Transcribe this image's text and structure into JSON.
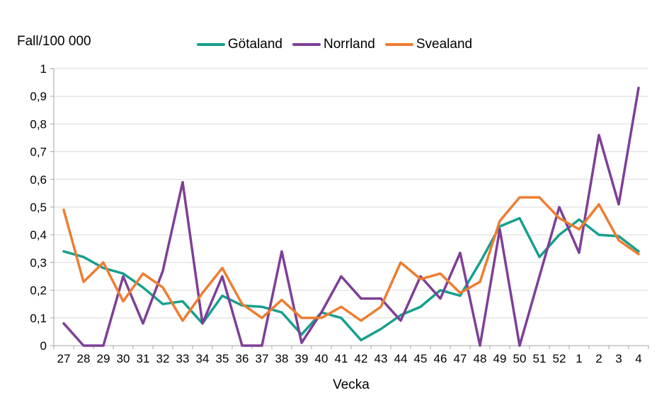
{
  "title": "Fall/100 000",
  "xaxis_title": "Vecka",
  "colors": {
    "gotaland": "#169F8C",
    "norrland": "#7E3F97",
    "svealand": "#ED7D31",
    "gridline": "#D9D9D9",
    "axis": "#A6A6A6",
    "text": "#000000"
  },
  "chart_data": {
    "type": "line",
    "title": "Fall/100 000",
    "xlabel": "Vecka",
    "ylabel": "Fall/100 000",
    "ylim": [
      0,
      1
    ],
    "ytick_step": 0.1,
    "decimal_separator": ",",
    "grid": "horizontal",
    "legend_position": "top-center",
    "categories": [
      "27",
      "28",
      "29",
      "30",
      "31",
      "32",
      "33",
      "34",
      "35",
      "36",
      "37",
      "38",
      "39",
      "40",
      "41",
      "42",
      "43",
      "44",
      "45",
      "46",
      "47",
      "48",
      "49",
      "50",
      "51",
      "52",
      "1",
      "2",
      "3",
      "4"
    ],
    "series": [
      {
        "name": "Götaland",
        "color": "#169F8C",
        "values": [
          0.34,
          0.32,
          0.28,
          0.26,
          0.21,
          0.15,
          0.16,
          0.08,
          0.18,
          0.145,
          0.14,
          0.12,
          0.04,
          0.12,
          0.1,
          0.02,
          0.06,
          0.11,
          0.14,
          0.2,
          0.18,
          0.3,
          0.43,
          0.46,
          0.32,
          0.4,
          0.455,
          0.4,
          0.395,
          0.34
        ]
      },
      {
        "name": "Norrland",
        "color": "#7E3F97",
        "values": [
          0.08,
          0,
          0,
          0.25,
          0.08,
          0.27,
          0.59,
          0.08,
          0.25,
          0,
          0,
          0.34,
          0.01,
          0.12,
          0.25,
          0.17,
          0.17,
          0.09,
          0.25,
          0.17,
          0.335,
          0,
          0.42,
          0,
          0.25,
          0.5,
          0.335,
          0.76,
          0.51,
          0.93
        ]
      },
      {
        "name": "Svealand",
        "color": "#ED7D31",
        "values": [
          0.49,
          0.23,
          0.3,
          0.16,
          0.26,
          0.21,
          0.09,
          0.19,
          0.28,
          0.15,
          0.1,
          0.165,
          0.1,
          0.1,
          0.14,
          0.09,
          0.14,
          0.3,
          0.24,
          0.26,
          0.19,
          0.23,
          0.45,
          0.535,
          0.535,
          0.46,
          0.42,
          0.51,
          0.38,
          0.33
        ]
      }
    ]
  }
}
